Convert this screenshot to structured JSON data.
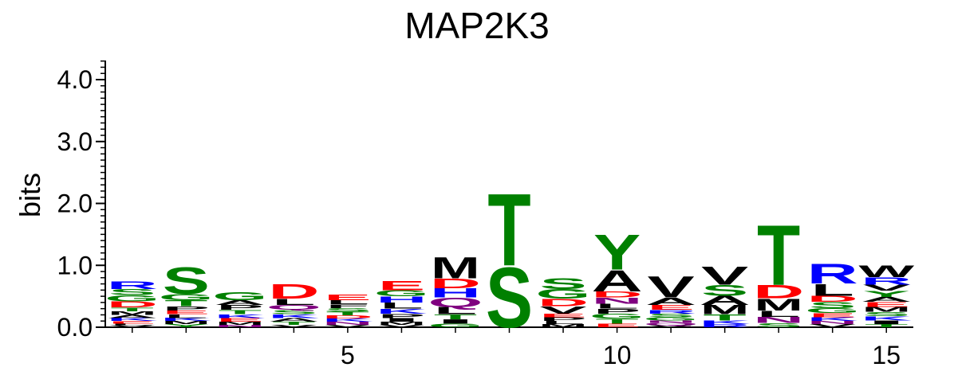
{
  "chart_data": {
    "type": "sequence-logo",
    "title": "MAP2K3",
    "ylabel": "bits",
    "xlabel": "",
    "ylim": [
      0,
      4.3
    ],
    "yticks": [
      "0.0",
      "1.0",
      "2.0",
      "3.0",
      "4.0"
    ],
    "ytick_values": [
      0,
      1,
      2,
      3,
      4
    ],
    "xticks": [
      "5",
      "10",
      "15"
    ],
    "xtick_values": [
      5,
      10,
      15
    ],
    "positions": [
      {
        "pos": 1,
        "letters": [
          [
            "V",
            0.03
          ],
          [
            "L",
            0.03
          ],
          [
            "E",
            0.04
          ],
          [
            "K",
            0.05
          ],
          [
            "A",
            0.05
          ],
          [
            "M",
            0.06
          ],
          [
            "T",
            0.06
          ],
          [
            "D",
            0.1
          ],
          [
            "G",
            0.1
          ],
          [
            "S",
            0.1
          ],
          [
            "R",
            0.13
          ]
        ]
      },
      {
        "pos": 2,
        "letters": [
          [
            "Y",
            0.05
          ],
          [
            "M",
            0.05
          ],
          [
            "K",
            0.05
          ],
          [
            "L",
            0.06
          ],
          [
            "E",
            0.06
          ],
          [
            "P",
            0.07
          ],
          [
            "T",
            0.1
          ],
          [
            "G",
            0.1
          ],
          [
            "S",
            0.45
          ]
        ]
      },
      {
        "pos": 3,
        "letters": [
          [
            "N",
            0.04
          ],
          [
            "M",
            0.05
          ],
          [
            "E",
            0.06
          ],
          [
            "K",
            0.06
          ],
          [
            "T",
            0.07
          ],
          [
            "P",
            0.08
          ],
          [
            "A",
            0.08
          ],
          [
            "G",
            0.14
          ]
        ]
      },
      {
        "pos": 4,
        "letters": [
          [
            "V",
            0.04
          ],
          [
            "T",
            0.05
          ],
          [
            "A",
            0.06
          ],
          [
            "K",
            0.06
          ],
          [
            "S",
            0.07
          ],
          [
            "Q",
            0.08
          ],
          [
            "L",
            0.1
          ],
          [
            "D",
            0.24
          ]
        ]
      },
      {
        "pos": 5,
        "letters": [
          [
            "V",
            0.04
          ],
          [
            "N",
            0.05
          ],
          [
            "K",
            0.05
          ],
          [
            "D",
            0.05
          ],
          [
            "T",
            0.06
          ],
          [
            "S",
            0.06
          ],
          [
            "L",
            0.07
          ],
          [
            "F",
            0.06
          ],
          [
            "E",
            0.09
          ]
        ]
      },
      {
        "pos": 6,
        "letters": [
          [
            "V",
            0.04
          ],
          [
            "M",
            0.05
          ],
          [
            "I",
            0.06
          ],
          [
            "P",
            0.07
          ],
          [
            "K",
            0.08
          ],
          [
            "L",
            0.1
          ],
          [
            "H",
            0.1
          ],
          [
            "G",
            0.1
          ],
          [
            "E",
            0.15
          ]
        ]
      },
      {
        "pos": 7,
        "letters": [
          [
            "T",
            0.08
          ],
          [
            "G",
            0.06
          ],
          [
            "I",
            0.07
          ],
          [
            "Q",
            0.15
          ],
          [
            "L",
            0.12
          ],
          [
            "H",
            0.15
          ],
          [
            "D",
            0.16
          ],
          [
            "M",
            0.35
          ]
        ]
      },
      {
        "pos": 8,
        "letters": [
          [
            "T",
            1.2
          ],
          [
            "S",
            1.0
          ]
        ]
      },
      {
        "pos": 9,
        "letters": [
          [
            "M",
            0.05
          ],
          [
            "L",
            0.05
          ],
          [
            "P",
            0.06
          ],
          [
            "E",
            0.06
          ],
          [
            "V",
            0.12
          ],
          [
            "D",
            0.12
          ],
          [
            "S",
            0.18
          ],
          [
            "G",
            0.16
          ]
        ]
      },
      {
        "pos": 10,
        "letters": [
          [
            "T",
            0.08
          ],
          [
            "G",
            0.08
          ],
          [
            "N",
            0.1
          ],
          [
            "P",
            0.08
          ],
          [
            "L",
            0.08
          ],
          [
            "D",
            0.1
          ],
          [
            "E",
            0.06
          ],
          [
            "A",
            0.35
          ],
          [
            "Y",
            0.58
          ]
        ]
      },
      {
        "pos": 11,
        "letters": [
          [
            "V",
            0.03
          ],
          [
            "Q",
            0.04
          ],
          [
            "N",
            0.04
          ],
          [
            "G",
            0.05
          ],
          [
            "S",
            0.06
          ],
          [
            "R",
            0.06
          ],
          [
            "E",
            0.08
          ],
          [
            "A",
            0.12
          ],
          [
            "V",
            0.35
          ]
        ]
      },
      {
        "pos": 12,
        "letters": [
          [
            "R",
            0.05
          ],
          [
            "K",
            0.06
          ],
          [
            "T",
            0.1
          ],
          [
            "M",
            0.15
          ],
          [
            "A",
            0.15
          ],
          [
            "S",
            0.18
          ],
          [
            "V",
            0.3
          ]
        ]
      },
      {
        "pos": 13,
        "letters": [
          [
            "S",
            0.07
          ],
          [
            "N",
            0.1
          ],
          [
            "L",
            0.1
          ],
          [
            "M",
            0.2
          ],
          [
            "D",
            0.22
          ],
          [
            "T",
            1.0
          ]
        ]
      },
      {
        "pos": 14,
        "letters": [
          [
            "V",
            0.05
          ],
          [
            "N",
            0.05
          ],
          [
            "K",
            0.06
          ],
          [
            "E",
            0.07
          ],
          [
            "G",
            0.08
          ],
          [
            "S",
            0.1
          ],
          [
            "D",
            0.1
          ],
          [
            "L",
            0.2
          ],
          [
            "R",
            0.33
          ]
        ]
      },
      {
        "pos": 15,
        "letters": [
          [
            "T",
            0.05
          ],
          [
            "I",
            0.06
          ],
          [
            "K",
            0.07
          ],
          [
            "M",
            0.08
          ],
          [
            "S",
            0.07
          ],
          [
            "E",
            0.08
          ],
          [
            "A",
            0.08
          ],
          [
            "Y",
            0.1
          ],
          [
            "V",
            0.1
          ],
          [
            "R",
            0.12
          ],
          [
            "W",
            0.2
          ]
        ]
      }
    ],
    "colors": {
      "S": "#008000",
      "T": "#008000",
      "G": "#008000",
      "Y": "#008000",
      "C": "#008000",
      "N": "#800080",
      "Q": "#800080",
      "K": "#0000ff",
      "R": "#0000ff",
      "H": "#0000ff",
      "D": "#ff0000",
      "E": "#ff0000",
      "A": "#000000",
      "V": "#000000",
      "L": "#000000",
      "I": "#000000",
      "P": "#000000",
      "W": "#000000",
      "F": "#000000",
      "M": "#000000"
    },
    "grid": false,
    "legend": "none"
  }
}
